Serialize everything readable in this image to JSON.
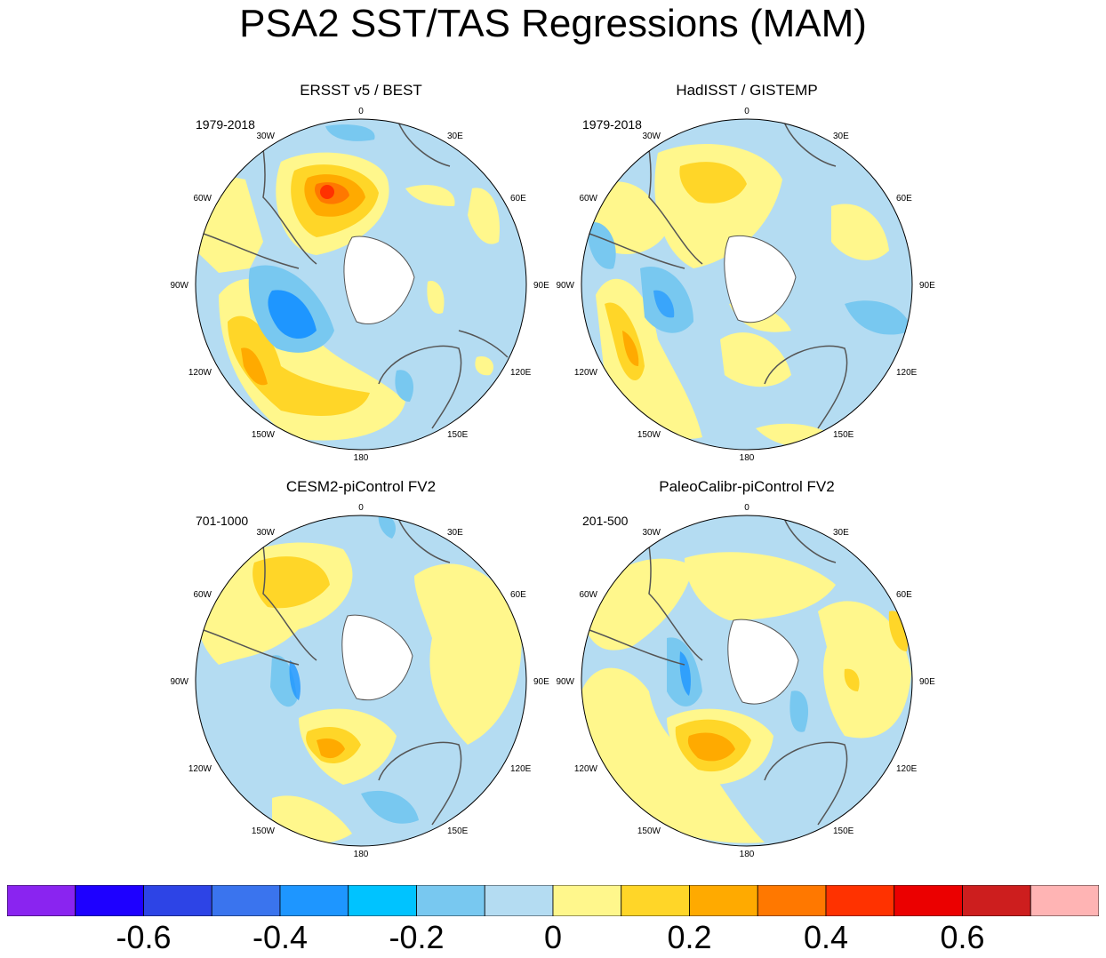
{
  "title": "PSA2 SST/TAS Regressions (MAM)",
  "panels": [
    {
      "title": "ERSST v5 / BEST",
      "period": "1979-2018"
    },
    {
      "title": "HadISST / GISTEMP",
      "period": "1979-2018"
    },
    {
      "title": "CESM2-piControl FV2",
      "period": "701-1000"
    },
    {
      "title": "PaleoCalibr-piControl FV2",
      "period": "201-500"
    }
  ],
  "longitude_labels": [
    "0",
    "30E",
    "60E",
    "90E",
    "120E",
    "150E",
    "180",
    "150W",
    "120W",
    "90W",
    "60W",
    "30W"
  ],
  "colorbar": {
    "colors": [
      "#8a24f0",
      "#1e00ff",
      "#2d44e6",
      "#3a74ee",
      "#1e96ff",
      "#00c3ff",
      "#78c8f0",
      "#b4dcf2",
      "#fff78c",
      "#ffd628",
      "#ffaa00",
      "#ff7800",
      "#ff3200",
      "#eb0000",
      "#cd1e1e",
      "#ffb4b4"
    ],
    "tick_labels": [
      "-0.6",
      "-0.4",
      "-0.2",
      "0",
      "0.2",
      "0.4",
      "0.6"
    ]
  }
}
